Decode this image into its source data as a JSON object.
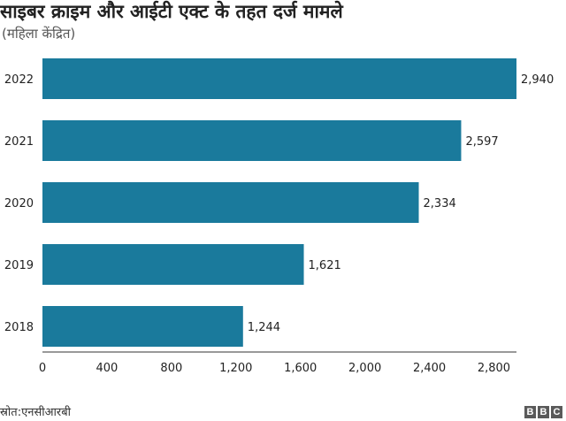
{
  "header": {
    "title": "साइबर क्राइम और आईटी एक्ट के तहत दर्ज मामले",
    "subtitle": "(महिला केंद्रित)"
  },
  "footer": {
    "source": "स्रोत:एनसीआरबी",
    "logo_letters": [
      "B",
      "B",
      "C"
    ]
  },
  "colors": {
    "bar": "#1a7a9c",
    "axis": "#333333",
    "text": "#222222"
  },
  "chart_data": {
    "type": "bar",
    "orientation": "horizontal",
    "title": "साइबर क्राइम और आईटी एक्ट के तहत दर्ज मामले",
    "subtitle": "(महिला केंद्रित)",
    "categories": [
      "2022",
      "2021",
      "2020",
      "2019",
      "2018"
    ],
    "values": [
      2940,
      2597,
      2334,
      1621,
      1244
    ],
    "value_labels": [
      "2,940",
      "2,597",
      "2,334",
      "1,621",
      "1,244"
    ],
    "xticks": [
      0,
      400,
      800,
      1200,
      1600,
      2000,
      2400,
      2800
    ],
    "xtick_labels": [
      "0",
      "400",
      "800",
      "1,200",
      "1,600",
      "2,000",
      "2,400",
      "2,800"
    ],
    "xlim": [
      0,
      2940
    ],
    "xlabel": "",
    "ylabel": "",
    "grid": false,
    "legend": "none"
  }
}
